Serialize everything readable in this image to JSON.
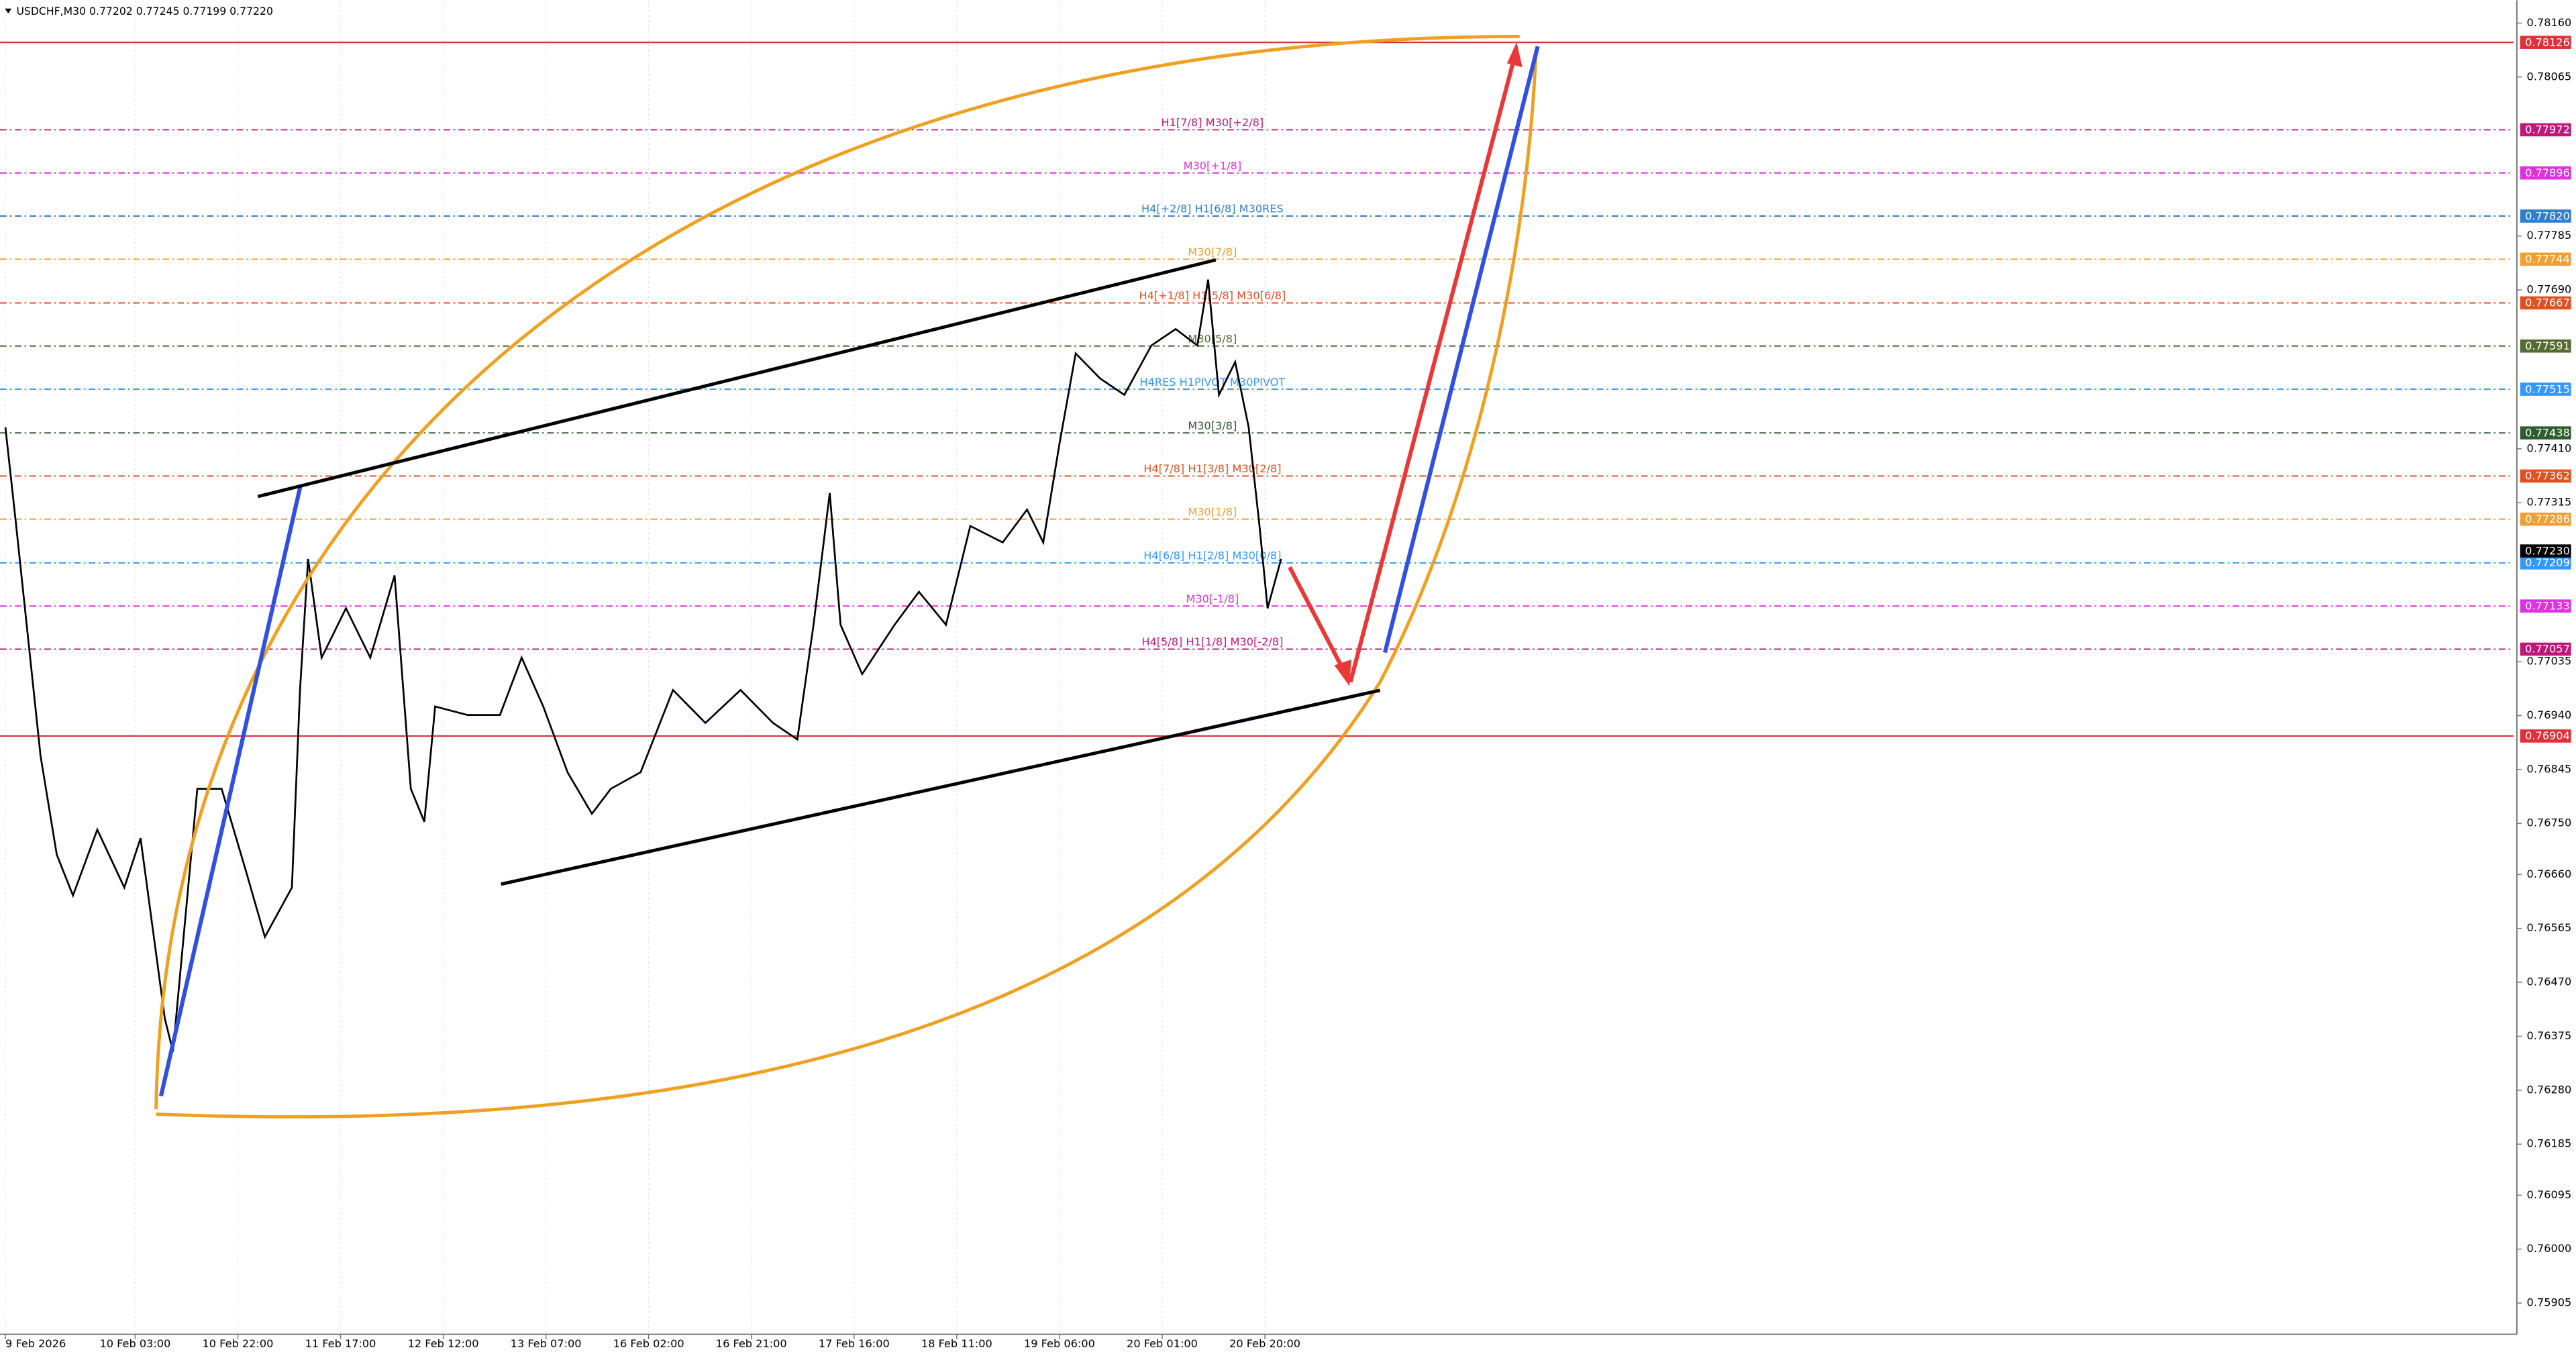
{
  "chart_data": {
    "type": "line",
    "title": "USDCHF,M30  0.77202 0.77245 0.77199 0.77220",
    "x": [
      2,
      6,
      15,
      21,
      27,
      36,
      46,
      52,
      61,
      64,
      73,
      82,
      91,
      98,
      108,
      111,
      114,
      119,
      128,
      137,
      146,
      152,
      157,
      161,
      173,
      185,
      193,
      201,
      210,
      219,
      226,
      237,
      249,
      261,
      274,
      286,
      295,
      301,
      307,
      311,
      319,
      331,
      340,
      350,
      359,
      371,
      380,
      386,
      392,
      398,
      407,
      416,
      426,
      435,
      443,
      447,
      451,
      457,
      462,
      466,
      469,
      474
    ],
    "values": [
      0.77448,
      0.77274,
      0.76869,
      0.76695,
      0.76623,
      0.76739,
      0.76637,
      0.76724,
      0.76406,
      0.76348,
      0.76811,
      0.76811,
      0.76666,
      0.7655,
      0.76637,
      0.76985,
      0.77216,
      0.77042,
      0.77129,
      0.77042,
      0.77187,
      0.76811,
      0.76753,
      0.76956,
      0.76941,
      0.76941,
      0.77042,
      0.76956,
      0.7684,
      0.76767,
      0.76811,
      0.7684,
      0.76985,
      0.76927,
      0.76985,
      0.76927,
      0.76898,
      0.771,
      0.77332,
      0.771,
      0.77013,
      0.771,
      0.77158,
      0.771,
      0.77274,
      0.77245,
      0.77303,
      0.77245,
      0.77419,
      0.77578,
      0.77534,
      0.77505,
      0.77592,
      0.77621,
      0.77592,
      0.77708,
      0.77505,
      0.77563,
      0.77448,
      0.77274,
      0.77129,
      0.77216
    ],
    "color": "#000000",
    "xlim": [
      0,
      930
    ],
    "ylim": [
      0.782,
      0.7585
    ],
    "xticks": [
      {
        "value": 2,
        "label": "9 Feb 2026"
      },
      {
        "value": 50,
        "label": "10 Feb 03:00"
      },
      {
        "value": 88,
        "label": "10 Feb 22:00"
      },
      {
        "value": 126,
        "label": "11 Feb 17:00"
      },
      {
        "value": 164,
        "label": "12 Feb 12:00"
      },
      {
        "value": 202,
        "label": "13 Feb 07:00"
      },
      {
        "value": 240,
        "label": "16 Feb 02:00"
      },
      {
        "value": 278,
        "label": "16 Feb 21:00"
      },
      {
        "value": 316,
        "label": "17 Feb 16:00"
      },
      {
        "value": 354,
        "label": "18 Feb 11:00"
      },
      {
        "value": 392,
        "label": "19 Feb 06:00"
      },
      {
        "value": 430,
        "label": "20 Feb 01:00"
      },
      {
        "value": 468,
        "label": "20 Feb 20:00"
      }
    ],
    "yticks": [
      {
        "value": 0.7816,
        "label": "0.78160"
      },
      {
        "value": 0.78065,
        "label": "0.78065"
      },
      {
        "value": 0.77785,
        "label": "0.77785"
      },
      {
        "value": 0.7769,
        "label": "0.77690"
      },
      {
        "value": 0.7741,
        "label": "0.77410"
      },
      {
        "value": 0.77315,
        "label": "0.77315"
      },
      {
        "value": 0.77035,
        "label": "0.77035"
      },
      {
        "value": 0.7694,
        "label": "0.76940"
      },
      {
        "value": 0.76845,
        "label": "0.76845"
      },
      {
        "value": 0.7675,
        "label": "0.76750"
      },
      {
        "value": 0.7666,
        "label": "0.76660"
      },
      {
        "value": 0.76565,
        "label": "0.76565"
      },
      {
        "value": 0.7647,
        "label": "0.76470"
      },
      {
        "value": 0.76375,
        "label": "0.76375"
      },
      {
        "value": 0.7628,
        "label": "0.76280"
      },
      {
        "value": 0.76185,
        "label": "0.76185"
      },
      {
        "value": 0.76095,
        "label": "0.76095"
      },
      {
        "value": 0.76,
        "label": "0.76000"
      },
      {
        "value": 0.75905,
        "label": "0.75905"
      }
    ],
    "levels": [
      {
        "value": 0.78126,
        "tag": "0.78126",
        "color": "#e0303a",
        "solid": true
      },
      {
        "value": 0.77972,
        "tag": "0.77972",
        "color": "#c0187a",
        "label": "H1[7/8] M30[+2/8]"
      },
      {
        "value": 0.77896,
        "tag": "0.77896",
        "color": "#e030e0",
        "label": "M30[+1/8]"
      },
      {
        "value": 0.7782,
        "tag": "0.77820",
        "color": "#2f7fd0",
        "label": "H4[+2/8] H1[6/8] M30RES"
      },
      {
        "value": 0.77744,
        "tag": "0.77744",
        "color": "#f0a030",
        "label": "M30[7/8]"
      },
      {
        "value": 0.77667,
        "tag": "0.77667",
        "color": "#e05020",
        "label": "H4[+1/8] H1[5/8] M30[6/8]"
      },
      {
        "value": 0.77591,
        "tag": "0.77591",
        "color": "#556b2f",
        "label": "M30[5/8]"
      },
      {
        "value": 0.77515,
        "tag": "0.77515",
        "color": "#3399ff",
        "label": "H4RES H1PIVOT M30PIVOT"
      },
      {
        "value": 0.77438,
        "tag": "0.77438",
        "color": "#2e5e2e",
        "label": "M30[3/8]"
      },
      {
        "value": 0.77362,
        "tag": "0.77362",
        "color": "#e05020",
        "label": "H4[7/8] H1[3/8] M30[2/8]"
      },
      {
        "value": 0.77286,
        "tag": "0.77286",
        "color": "#f0a030",
        "label": "M30[1/8]"
      },
      {
        "value": 0.77209,
        "tag": "0.77209",
        "color": "#3399ff",
        "label": "H4[6/8] H1[2/8] M30[0/8]"
      },
      {
        "value": 0.77133,
        "tag": "0.77133",
        "color": "#e030e0",
        "label": "M30[-1/8]"
      },
      {
        "value": 0.77057,
        "tag": "0.77057",
        "color": "#c0187a",
        "label": "H4[5/8] H1[1/8] M30[-2/8]"
      },
      {
        "value": 0.76904,
        "tag": "0.76904",
        "color": "#e0303a",
        "solid": true
      }
    ],
    "last_price": {
      "value": 0.7723,
      "tag": "0.77230",
      "color": "#000000"
    }
  }
}
